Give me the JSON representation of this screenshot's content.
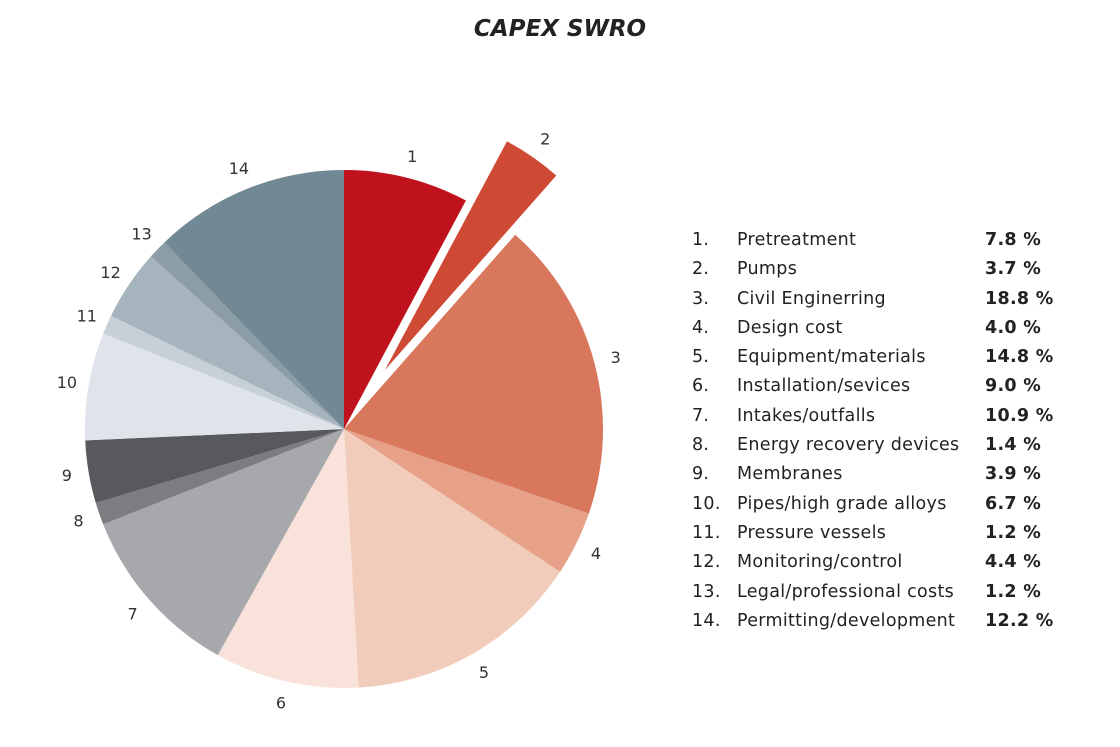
{
  "chart_data": {
    "type": "pie",
    "title": "CAPEX SWRO",
    "slices": [
      {
        "number": "1",
        "prefix": "1.",
        "label": "Pretreatment",
        "value": 7.8,
        "display": "7.8 %",
        "color": "#c0121c",
        "exploded": false
      },
      {
        "number": "2",
        "prefix": "2.",
        "label": "Pumps",
        "value": 3.7,
        "display": "3.7 %",
        "color": "#cf4a34",
        "exploded": true
      },
      {
        "number": "3",
        "prefix": "3.",
        "label": "Civil Enginerring",
        "value": 18.8,
        "display": "18.8 %",
        "color": "#d9775d",
        "exploded": false
      },
      {
        "number": "4",
        "prefix": "4.",
        "label": "Design cost",
        "value": 4.0,
        "display": "4.0 %",
        "color": "#e7a188",
        "exploded": false
      },
      {
        "number": "5",
        "prefix": "5.",
        "label": "Equipment/materials",
        "value": 14.8,
        "display": "14.8 %",
        "color": "#f2ccbb",
        "exploded": false
      },
      {
        "number": "6",
        "prefix": "6.",
        "label": "Installation/sevices",
        "value": 9.0,
        "display": "9.0 %",
        "color": "#f8e2d9",
        "exploded": false
      },
      {
        "number": "7",
        "prefix": "7.",
        "label": "Intakes/outfalls",
        "value": 10.9,
        "display": "10.9 %",
        "color": "#a6a8ab",
        "exploded": false
      },
      {
        "number": "8",
        "prefix": "8.",
        "label": "Energy recovery devices",
        "value": 1.4,
        "display": "1.4 %",
        "color": "#7b7d80",
        "exploded": false
      },
      {
        "number": "9",
        "prefix": "9.",
        "label": "Membranes",
        "value": 3.9,
        "display": "3.9 %",
        "color": "#57595c",
        "exploded": false
      },
      {
        "number": "10",
        "prefix": "10.",
        "label": "Pipes/high grade alloys",
        "value": 6.7,
        "display": "6.7 %",
        "color": "#dfe4ea",
        "exploded": false
      },
      {
        "number": "11",
        "prefix": "11.",
        "label": "Pressure vessels",
        "value": 1.2,
        "display": "1.2 %",
        "color": "#c6d0d6",
        "exploded": false
      },
      {
        "number": "12",
        "prefix": "12.",
        "label": "Monitoring/control",
        "value": 4.4,
        "display": "4.4 %",
        "color": "#a6b4bd",
        "exploded": false
      },
      {
        "number": "13",
        "prefix": "13.",
        "label": "Legal/professional costs",
        "value": 1.2,
        "display": "1.2 %",
        "color": "#8d9da6",
        "exploded": false
      },
      {
        "number": "14",
        "prefix": "14.",
        "label": "Permitting/development",
        "value": 12.2,
        "display": "12.2 %",
        "color": "#718994",
        "exploded": false
      }
    ],
    "legend_position": "right",
    "start_angle": "top",
    "direction": "clockwise"
  }
}
